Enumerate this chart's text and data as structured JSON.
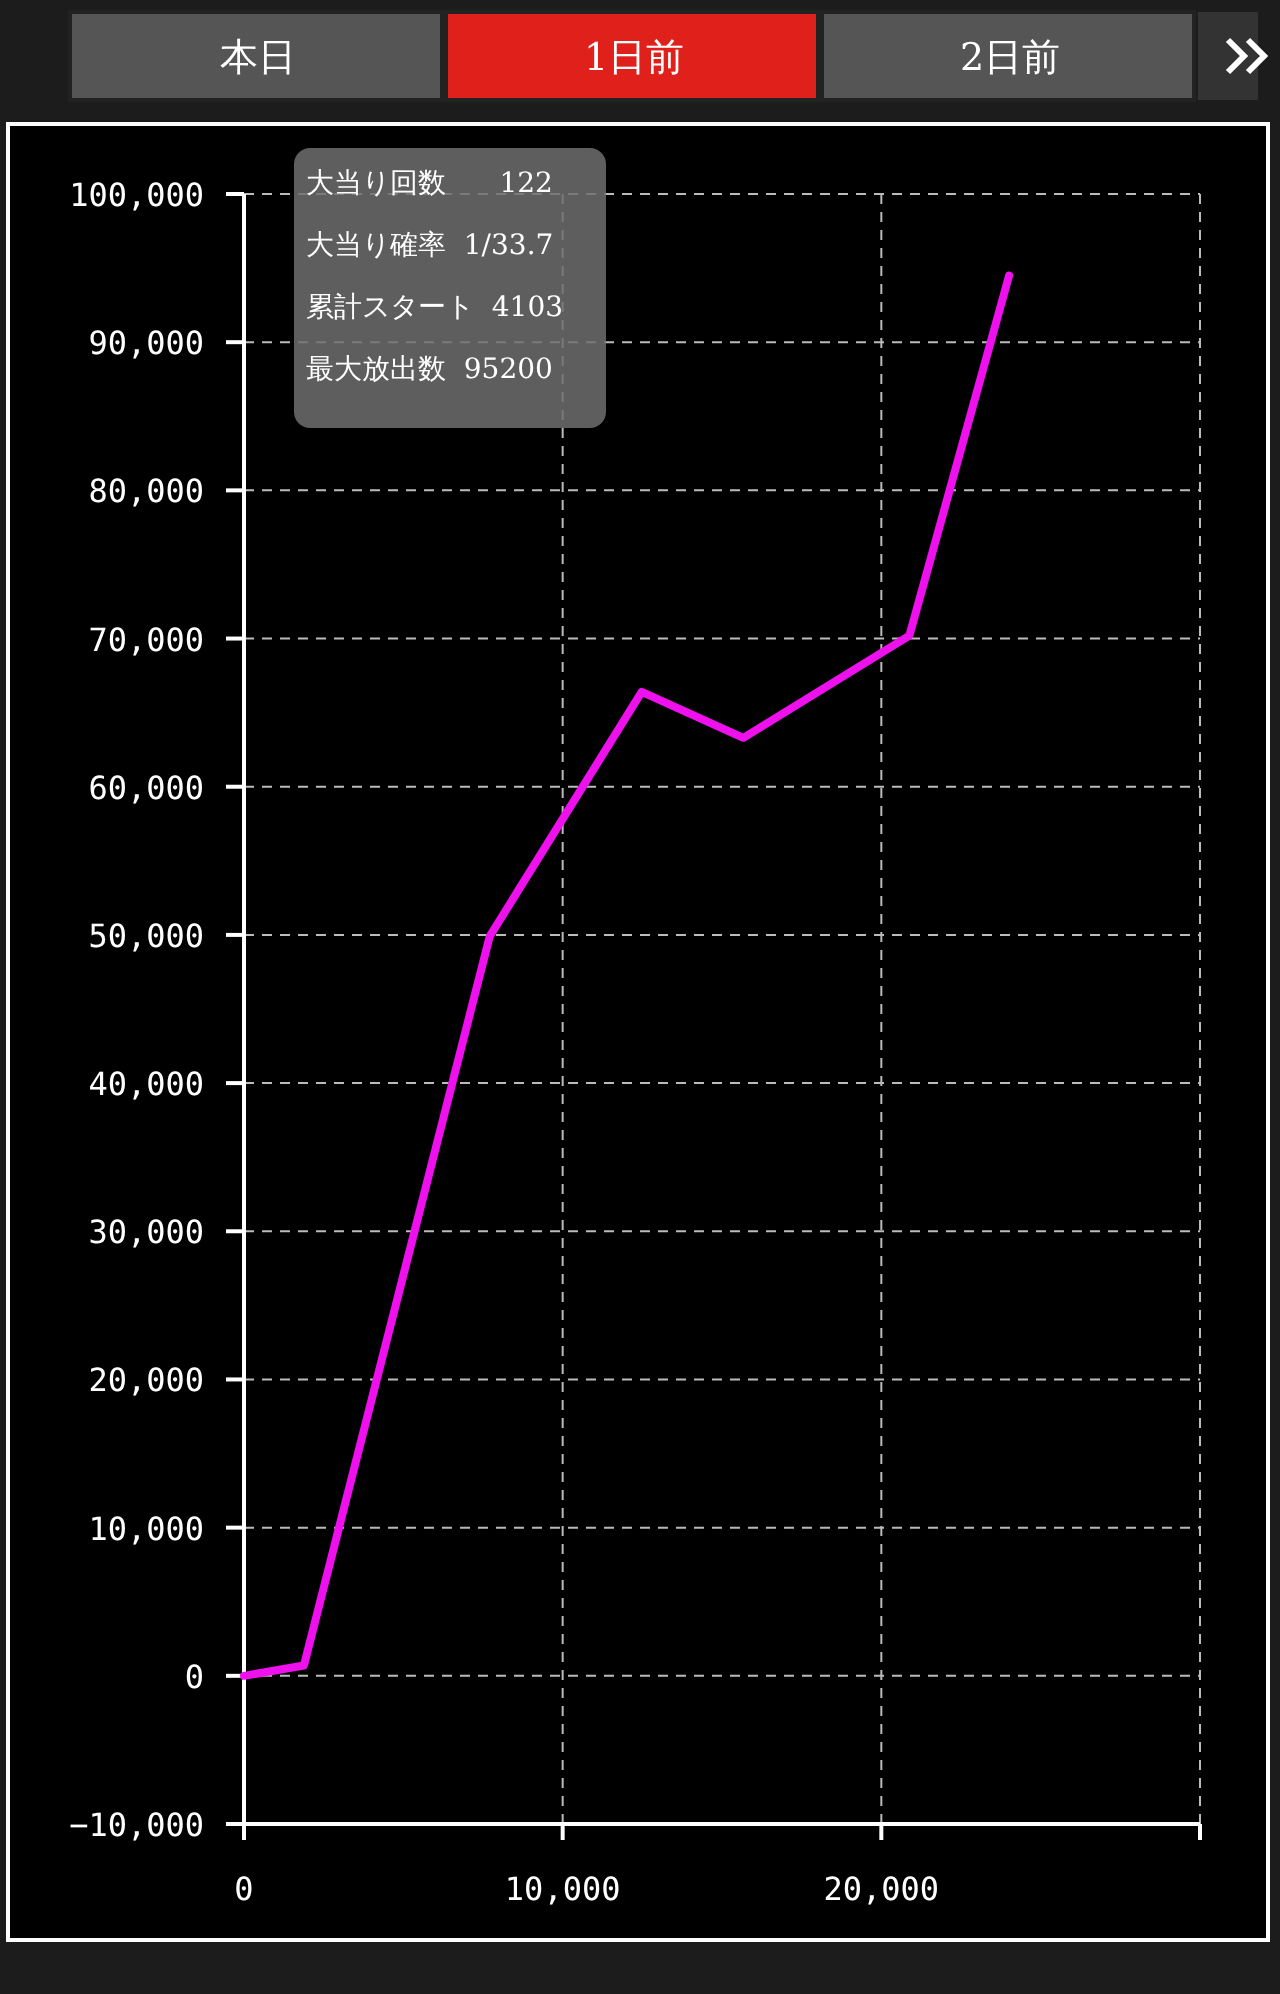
{
  "chart_data": {
    "type": "line",
    "x": [
      0,
      1880,
      7710,
      12480,
      15670,
      20880,
      24010
    ],
    "series": [
      {
        "color": "#ee11ee",
        "values": [
          0,
          700,
          49900,
          66400,
          63300,
          70200,
          94500
        ]
      }
    ],
    "xlim": [
      0,
      30000
    ],
    "xticks": [
      0,
      {
        "value": 10000,
        "label": "10,000"
      },
      {
        "value": 20000,
        "label": "20,000"
      },
      {
        "value": 30000,
        "label": null
      }
    ],
    "ylim": [
      -10000,
      100000
    ],
    "yticks": [
      {
        "value": -10000,
        "label": "−10,000"
      },
      0,
      {
        "value": 10000,
        "label": "10,000"
      },
      {
        "value": 20000,
        "label": "20,000"
      },
      {
        "value": 30000,
        "label": "30,000"
      },
      {
        "value": 40000,
        "label": "40,000"
      },
      {
        "value": 50000,
        "label": "50,000"
      },
      {
        "value": 60000,
        "label": "60,000"
      },
      {
        "value": 70000,
        "label": "70,000"
      },
      {
        "value": 80000,
        "label": "80,000"
      },
      {
        "value": 90000,
        "label": "90,000"
      },
      {
        "value": 100000,
        "label": "100,000"
      }
    ],
    "grid": true,
    "marker": "none",
    "line_style": "solid",
    "annotations": [
      "本日",
      "1日前",
      "2日前",
      "大当り回数      122",
      "大当り確率  1/33.7",
      "累計スタート  4103",
      "最大放出数  95200"
    ]
  }
}
